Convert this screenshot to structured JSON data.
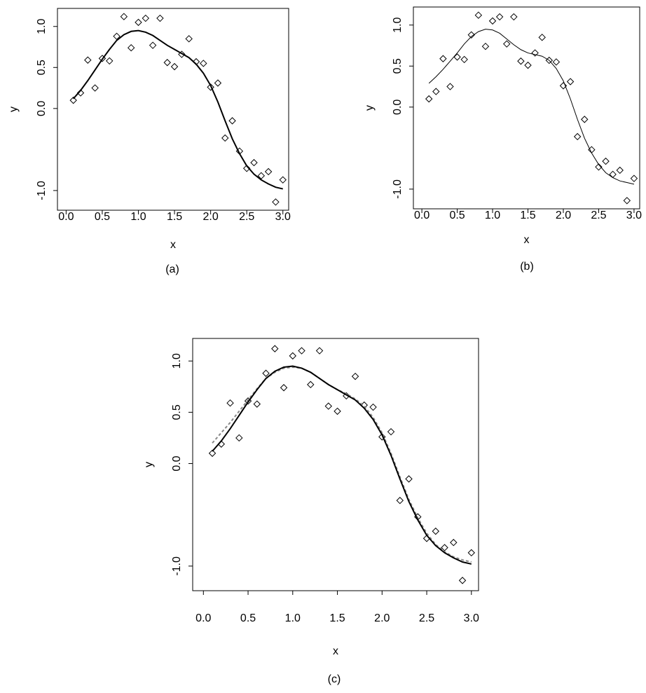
{
  "chart_data": [
    {
      "type": "scatter",
      "caption": "(a)",
      "xlabel": "x",
      "ylabel": "y",
      "xlim": [
        -0.12,
        3.08
      ],
      "ylim": [
        -1.24,
        1.22
      ],
      "xticks": [
        {
          "value": 0,
          "label": "0.0"
        },
        {
          "value": 0.5,
          "label": "0.5"
        },
        {
          "value": 1,
          "label": "1.0"
        },
        {
          "value": 1.5,
          "label": "1.5"
        },
        {
          "value": 2,
          "label": "2.0"
        },
        {
          "value": 2.5,
          "label": "2.5"
        },
        {
          "value": 3,
          "label": "3.0"
        }
      ],
      "yticks": [
        {
          "value": -1,
          "label": "-1.0"
        },
        {
          "value": 0,
          "label": "0.0"
        },
        {
          "value": 0.5,
          "label": "0.5"
        },
        {
          "value": 1,
          "label": "1.0"
        }
      ],
      "x": [
        0.1,
        0.2,
        0.3,
        0.4,
        0.5,
        0.6,
        0.7,
        0.8,
        0.9,
        1.0,
        1.1,
        1.2,
        1.3,
        1.4,
        1.5,
        1.6,
        1.7,
        1.8,
        1.9,
        2.0,
        2.1,
        2.2,
        2.3,
        2.4,
        2.5,
        2.6,
        2.7,
        2.8,
        2.9,
        3.0
      ],
      "series": [
        {
          "mode": "markers",
          "color": "#000000",
          "values": [
            0.1,
            0.19,
            0.59,
            0.25,
            0.61,
            0.58,
            0.88,
            1.12,
            0.74,
            1.05,
            1.1,
            0.77,
            1.1,
            0.56,
            0.51,
            0.66,
            0.85,
            0.57,
            0.55,
            0.26,
            0.31,
            -0.36,
            -0.15,
            -0.52,
            -0.73,
            -0.66,
            -0.82,
            -0.77,
            -1.14,
            -0.87
          ]
        },
        {
          "mode": "line",
          "dash": "solid",
          "width": 2,
          "color": "#000000",
          "values": [
            0.12,
            0.22,
            0.34,
            0.47,
            0.6,
            0.72,
            0.83,
            0.9,
            0.94,
            0.95,
            0.93,
            0.89,
            0.83,
            0.77,
            0.72,
            0.67,
            0.62,
            0.54,
            0.43,
            0.28,
            0.08,
            -0.15,
            -0.37,
            -0.55,
            -0.7,
            -0.8,
            -0.87,
            -0.92,
            -0.96,
            -0.98
          ]
        }
      ]
    },
    {
      "type": "scatter",
      "caption": "(b)",
      "xlabel": "x",
      "ylabel": "y",
      "xlim": [
        -0.12,
        3.08
      ],
      "ylim": [
        -1.24,
        1.22
      ],
      "xticks": [
        {
          "value": 0,
          "label": "0.0"
        },
        {
          "value": 0.5,
          "label": "0.5"
        },
        {
          "value": 1,
          "label": "1.0"
        },
        {
          "value": 1.5,
          "label": "1.5"
        },
        {
          "value": 2,
          "label": "2.0"
        },
        {
          "value": 2.5,
          "label": "2.5"
        },
        {
          "value": 3,
          "label": "3.0"
        }
      ],
      "yticks": [
        {
          "value": -1,
          "label": "-1.0"
        },
        {
          "value": 0,
          "label": "0.0"
        },
        {
          "value": 0.5,
          "label": "0.5"
        },
        {
          "value": 1,
          "label": "1.0"
        }
      ],
      "x": [
        0.1,
        0.2,
        0.3,
        0.4,
        0.5,
        0.6,
        0.7,
        0.8,
        0.9,
        1.0,
        1.1,
        1.2,
        1.3,
        1.4,
        1.5,
        1.6,
        1.7,
        1.8,
        1.9,
        2.0,
        2.1,
        2.2,
        2.3,
        2.4,
        2.5,
        2.6,
        2.7,
        2.8,
        2.9,
        3.0
      ],
      "series": [
        {
          "mode": "markers",
          "color": "#000000",
          "values": [
            0.1,
            0.19,
            0.59,
            0.25,
            0.61,
            0.58,
            0.88,
            1.12,
            0.74,
            1.05,
            1.1,
            0.77,
            1.1,
            0.56,
            0.51,
            0.66,
            0.85,
            0.57,
            0.55,
            0.26,
            0.31,
            -0.36,
            -0.15,
            -0.52,
            -0.73,
            -0.66,
            -0.82,
            -0.77,
            -1.14,
            -0.87
          ]
        },
        {
          "mode": "line",
          "dash": "solid",
          "width": 1,
          "color": "#000000",
          "values": [
            0.29,
            0.37,
            0.46,
            0.56,
            0.66,
            0.77,
            0.86,
            0.92,
            0.95,
            0.94,
            0.9,
            0.83,
            0.76,
            0.7,
            0.66,
            0.64,
            0.62,
            0.57,
            0.47,
            0.32,
            0.1,
            -0.15,
            -0.38,
            -0.56,
            -0.7,
            -0.8,
            -0.86,
            -0.9,
            -0.92,
            -0.94
          ]
        }
      ]
    },
    {
      "type": "scatter",
      "caption": "(c)",
      "xlabel": "x",
      "ylabel": "y",
      "xlim": [
        -0.12,
        3.08
      ],
      "ylim": [
        -1.24,
        1.22
      ],
      "xticks": [
        {
          "value": 0,
          "label": "0.0"
        },
        {
          "value": 0.5,
          "label": "0.5"
        },
        {
          "value": 1,
          "label": "1.0"
        },
        {
          "value": 1.5,
          "label": "1.5"
        },
        {
          "value": 2,
          "label": "2.0"
        },
        {
          "value": 2.5,
          "label": "2.5"
        },
        {
          "value": 3,
          "label": "3.0"
        }
      ],
      "yticks": [
        {
          "value": -1,
          "label": "-1.0"
        },
        {
          "value": 0,
          "label": "0.0"
        },
        {
          "value": 0.5,
          "label": "0.5"
        },
        {
          "value": 1,
          "label": "1.0"
        }
      ],
      "x": [
        0.1,
        0.2,
        0.3,
        0.4,
        0.5,
        0.6,
        0.7,
        0.8,
        0.9,
        1.0,
        1.1,
        1.2,
        1.3,
        1.4,
        1.5,
        1.6,
        1.7,
        1.8,
        1.9,
        2.0,
        2.1,
        2.2,
        2.3,
        2.4,
        2.5,
        2.6,
        2.7,
        2.8,
        2.9,
        3.0
      ],
      "series": [
        {
          "mode": "markers",
          "color": "#000000",
          "values": [
            0.1,
            0.19,
            0.59,
            0.25,
            0.61,
            0.58,
            0.88,
            1.12,
            0.74,
            1.05,
            1.1,
            0.77,
            1.1,
            0.56,
            0.51,
            0.66,
            0.85,
            0.57,
            0.55,
            0.26,
            0.31,
            -0.36,
            -0.15,
            -0.52,
            -0.73,
            -0.66,
            -0.82,
            -0.77,
            -1.14,
            -0.87
          ]
        },
        {
          "mode": "line",
          "dash": "dashed",
          "width": 2,
          "color": "#888888",
          "values": [
            0.2,
            0.3,
            0.4,
            0.51,
            0.62,
            0.73,
            0.83,
            0.89,
            0.93,
            0.94,
            0.93,
            0.89,
            0.83,
            0.77,
            0.72,
            0.68,
            0.63,
            0.56,
            0.45,
            0.3,
            0.1,
            -0.13,
            -0.35,
            -0.53,
            -0.68,
            -0.79,
            -0.86,
            -0.91,
            -0.94,
            -0.96
          ]
        },
        {
          "mode": "line",
          "dash": "solid",
          "width": 2,
          "color": "#000000",
          "values": [
            0.12,
            0.22,
            0.34,
            0.47,
            0.6,
            0.72,
            0.83,
            0.9,
            0.94,
            0.95,
            0.93,
            0.89,
            0.83,
            0.77,
            0.72,
            0.67,
            0.62,
            0.54,
            0.43,
            0.28,
            0.08,
            -0.15,
            -0.37,
            -0.55,
            -0.7,
            -0.8,
            -0.87,
            -0.92,
            -0.96,
            -0.98
          ]
        }
      ]
    }
  ]
}
